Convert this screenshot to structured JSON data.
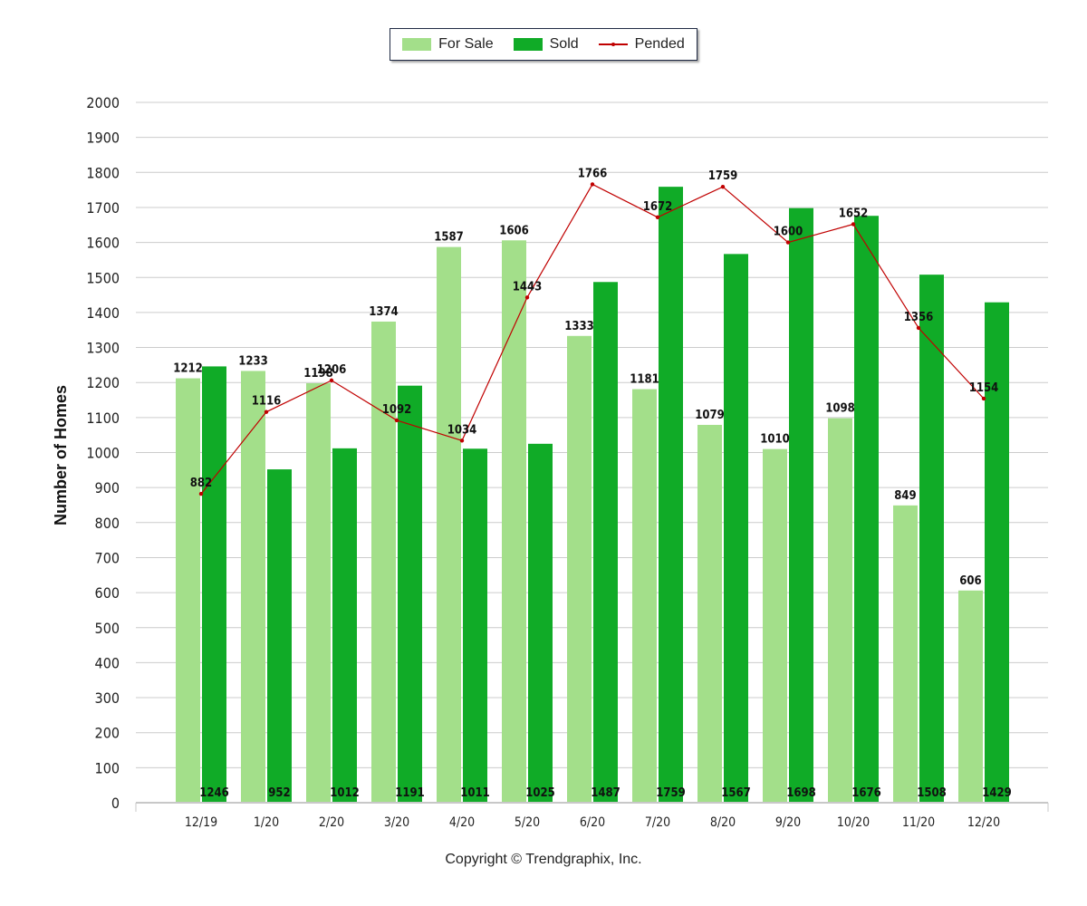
{
  "legend": {
    "for_sale_label": "For Sale",
    "sold_label": "Sold",
    "pended_label": "Pended"
  },
  "copyright": "Copyright © Trendgraphix, Inc.",
  "colors": {
    "for_sale": "#a3df8a",
    "sold": "#10ab27",
    "pended": "#c00000",
    "grid": "#cccccc"
  },
  "chart_data": {
    "type": "bar",
    "ylabel": "Number of Homes",
    "xlabel": "",
    "ylim": [
      0,
      2000
    ],
    "ytick_step": 100,
    "grid": true,
    "legend_position": "top-center",
    "categories": [
      "12/19",
      "1/20",
      "2/20",
      "3/20",
      "4/20",
      "5/20",
      "6/20",
      "7/20",
      "8/20",
      "9/20",
      "10/20",
      "11/20",
      "12/20"
    ],
    "series": [
      {
        "name": "For Sale",
        "kind": "bar",
        "values": [
          1212,
          1233,
          1198,
          1374,
          1587,
          1606,
          1333,
          1181,
          1079,
          1010,
          1098,
          849,
          606
        ]
      },
      {
        "name": "Sold",
        "kind": "bar",
        "values": [
          1246,
          952,
          1012,
          1191,
          1011,
          1025,
          1487,
          1759,
          1567,
          1698,
          1676,
          1508,
          1429
        ]
      },
      {
        "name": "Pended",
        "kind": "line",
        "values": [
          882,
          1116,
          1206,
          1092,
          1034,
          1443,
          1766,
          1672,
          1759,
          1600,
          1652,
          1356,
          1154
        ]
      }
    ]
  }
}
